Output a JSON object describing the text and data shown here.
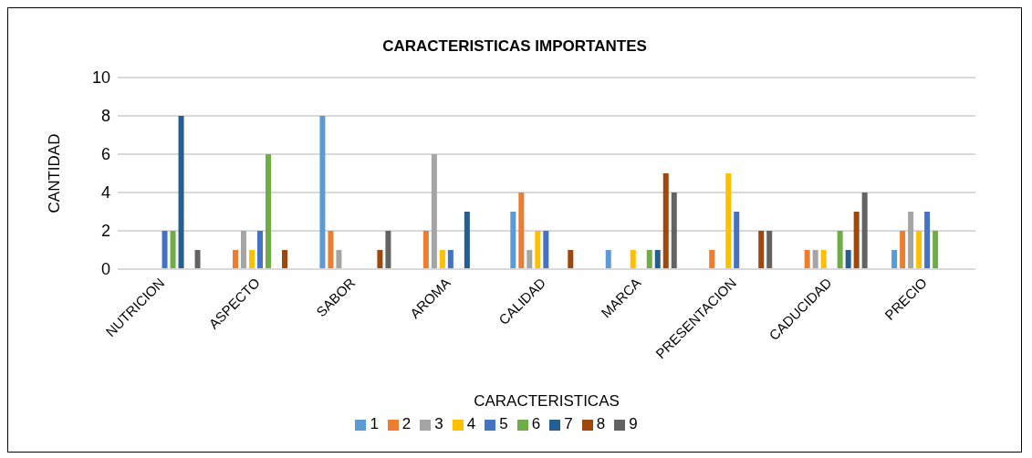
{
  "chart_data": {
    "type": "bar",
    "title": "CARACTERISTICAS IMPORTANTES",
    "xlabel": "CARACTERISTICAS",
    "ylabel": "CANTIDAD",
    "categories": [
      "NUTRICION",
      "ASPECTO",
      "SABOR",
      "AROMA",
      "CALIDAD",
      "MARCA",
      "PRESENTACION",
      "CADUCIDAD",
      "PRECIO"
    ],
    "series": [
      {
        "name": "1",
        "color": "#5b9bd5",
        "values": [
          0,
          0,
          8,
          0,
          3,
          1,
          0,
          0,
          1
        ]
      },
      {
        "name": "2",
        "color": "#ed7d31",
        "values": [
          0,
          1,
          2,
          2,
          4,
          0,
          1,
          1,
          2
        ]
      },
      {
        "name": "3",
        "color": "#a5a5a5",
        "values": [
          0,
          2,
          1,
          6,
          1,
          0,
          0,
          1,
          3
        ]
      },
      {
        "name": "4",
        "color": "#ffc000",
        "values": [
          0,
          1,
          0,
          1,
          2,
          1,
          5,
          1,
          2
        ]
      },
      {
        "name": "5",
        "color": "#4472c4",
        "values": [
          2,
          2,
          0,
          1,
          2,
          0,
          3,
          0,
          3
        ]
      },
      {
        "name": "6",
        "color": "#70ad47",
        "values": [
          2,
          6,
          0,
          0,
          0,
          1,
          0,
          2,
          2
        ]
      },
      {
        "name": "7",
        "color": "#255e91",
        "values": [
          8,
          0,
          0,
          3,
          0,
          1,
          0,
          1,
          0
        ]
      },
      {
        "name": "8",
        "color": "#9e480e",
        "values": [
          0,
          1,
          1,
          0,
          1,
          5,
          2,
          3,
          0
        ]
      },
      {
        "name": "9",
        "color": "#636363",
        "values": [
          1,
          0,
          2,
          0,
          0,
          4,
          2,
          4,
          0
        ]
      }
    ],
    "ylim": [
      0,
      10
    ],
    "yticks": [
      0,
      2,
      4,
      6,
      8,
      10
    ],
    "grid": "y",
    "legend": "bottom"
  }
}
